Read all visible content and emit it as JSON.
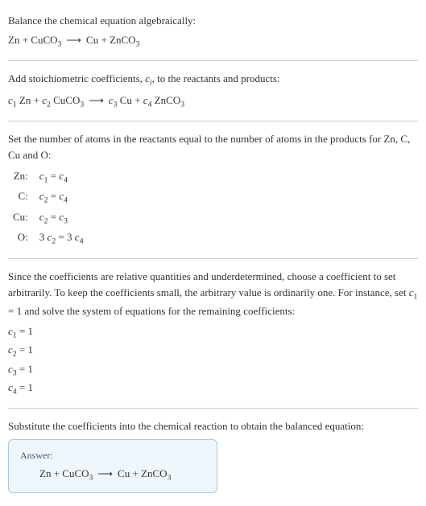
{
  "intro": {
    "line1": "Balance the chemical equation algebraically:",
    "eq": {
      "lhs1": "Zn",
      "lhs2": "CuCO",
      "lhs2_sub": "3",
      "rhs1": "Cu",
      "rhs2": "ZnCO",
      "rhs2_sub": "3"
    }
  },
  "stoich": {
    "text": "Add stoichiometric coefficients, ",
    "ci": "c",
    "ci_sub": "i",
    "text2": ", to the reactants and products:",
    "eq": {
      "c1": "c",
      "c1_sub": "1",
      "s1": " Zn",
      "c2": "c",
      "c2_sub": "2",
      "s2": " CuCO",
      "s2_sub": "3",
      "c3": "c",
      "c3_sub": "3",
      "s3": " Cu",
      "c4": "c",
      "c4_sub": "4",
      "s4": " ZnCO",
      "s4_sub": "3"
    }
  },
  "atoms": {
    "text": "Set the number of atoms in the reactants equal to the number of atoms in the products for Zn, C, Cu and O:",
    "rows": [
      {
        "el": "Zn:",
        "lhs_c": "c",
        "lhs_sub": "1",
        "lhs_coef": "",
        "op": " = ",
        "rhs_c": "c",
        "rhs_sub": "4",
        "rhs_coef": ""
      },
      {
        "el": "C:",
        "lhs_c": "c",
        "lhs_sub": "2",
        "lhs_coef": "",
        "op": " = ",
        "rhs_c": "c",
        "rhs_sub": "4",
        "rhs_coef": ""
      },
      {
        "el": "Cu:",
        "lhs_c": "c",
        "lhs_sub": "2",
        "lhs_coef": "",
        "op": " = ",
        "rhs_c": "c",
        "rhs_sub": "3",
        "rhs_coef": ""
      },
      {
        "el": "O:",
        "lhs_c": "c",
        "lhs_sub": "2",
        "lhs_coef": "3 ",
        "op": " = ",
        "rhs_c": "c",
        "rhs_sub": "4",
        "rhs_coef": "3 "
      }
    ]
  },
  "solve": {
    "text_a": "Since the coefficients are relative quantities and underdetermined, choose a coefficient to set arbitrarily. To keep the coefficients small, the arbitrary value is ordinarily one. For instance, set ",
    "c1": "c",
    "c1_sub": "1",
    "text_b": " = 1 and solve the system of equations for the remaining coefficients:",
    "results": [
      {
        "c": "c",
        "sub": "1",
        "val": " = 1"
      },
      {
        "c": "c",
        "sub": "2",
        "val": " = 1"
      },
      {
        "c": "c",
        "sub": "3",
        "val": " = 1"
      },
      {
        "c": "c",
        "sub": "4",
        "val": " = 1"
      }
    ]
  },
  "final": {
    "text": "Substitute the coefficients into the chemical reaction to obtain the balanced equation:",
    "answer_label": "Answer:",
    "eq": {
      "lhs1": "Zn",
      "lhs2": "CuCO",
      "lhs2_sub": "3",
      "rhs1": "Cu",
      "rhs2": "ZnCO",
      "rhs2_sub": "3"
    }
  },
  "style": {
    "text_color": "#333333",
    "bg_color": "#ffffff",
    "divider_color": "#cccccc",
    "answer_bg": "#f0f7fc",
    "answer_border": "#a8c8e0",
    "arrow": "⟶",
    "plus": " + "
  }
}
